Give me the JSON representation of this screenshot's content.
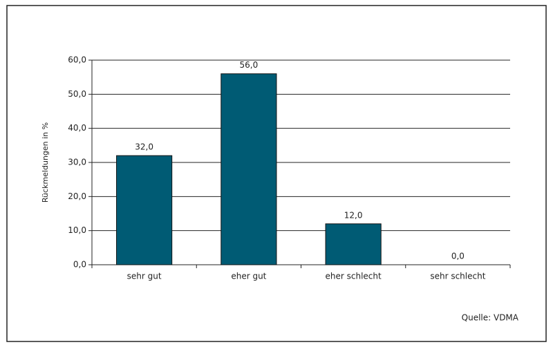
{
  "chart_data": {
    "type": "bar",
    "y_label": "Rückmeldungen in %",
    "categories": [
      "sehr gut",
      "eher gut",
      "eher schlecht",
      "sehr schlecht"
    ],
    "values": [
      32,
      56,
      12,
      0
    ],
    "value_labels": [
      "32,0",
      "56,0",
      "12,0",
      "0,0"
    ],
    "color": "#005b74",
    "ylim": [
      0,
      60
    ],
    "yticks": [
      {
        "value": 0,
        "label": "0,0"
      },
      {
        "value": 10,
        "label": "10,0"
      },
      {
        "value": 20,
        "label": "20,0"
      },
      {
        "value": 30,
        "label": "30,0"
      },
      {
        "value": 40,
        "label": "40,0"
      },
      {
        "value": 50,
        "label": "50,0"
      },
      {
        "value": 60,
        "label": "60,0"
      }
    ],
    "grid": true,
    "source": "Quelle: VDMA"
  }
}
